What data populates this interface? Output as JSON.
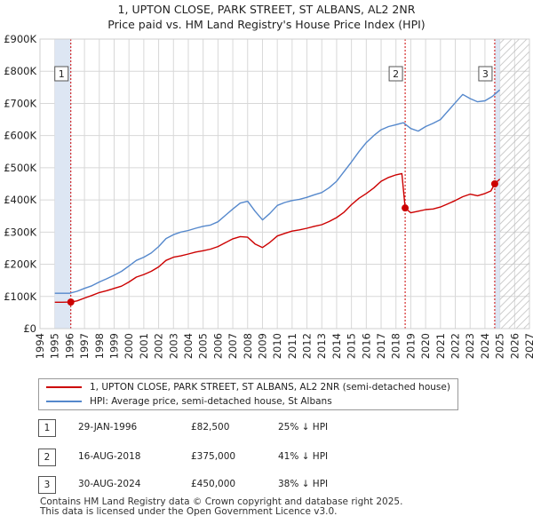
{
  "header": {
    "title": "1, UPTON CLOSE, PARK STREET, ST ALBANS, AL2 2NR",
    "subtitle": "Price paid vs. HM Land Registry's House Price Index (HPI)"
  },
  "chart_data": {
    "type": "line",
    "title": "1, UPTON CLOSE, PARK STREET, ST ALBANS, AL2 2NR",
    "subtitle": "Price paid vs. HM Land Registry's House Price Index (HPI)",
    "xlabel": "",
    "ylabel": "",
    "xlim": [
      1994,
      2027
    ],
    "ylim": [
      0,
      900000
    ],
    "x_ticks": [
      "1994",
      "1995",
      "1996",
      "1997",
      "1998",
      "1999",
      "2000",
      "2001",
      "2002",
      "2003",
      "2004",
      "2005",
      "2006",
      "2007",
      "2008",
      "2009",
      "2010",
      "2011",
      "2012",
      "2013",
      "2014",
      "2015",
      "2016",
      "2017",
      "2018",
      "2019",
      "2020",
      "2021",
      "2022",
      "2023",
      "2024",
      "2025",
      "2026",
      "2027"
    ],
    "y_ticks": [
      {
        "value": 0,
        "label": "£0"
      },
      {
        "value": 100000,
        "label": "£100K"
      },
      {
        "value": 200000,
        "label": "£200K"
      },
      {
        "value": 300000,
        "label": "£300K"
      },
      {
        "value": 400000,
        "label": "£400K"
      },
      {
        "value": 500000,
        "label": "£500K"
      },
      {
        "value": 600000,
        "label": "£600K"
      },
      {
        "value": 700000,
        "label": "£700K"
      },
      {
        "value": 800000,
        "label": "£800K"
      },
      {
        "value": 900000,
        "label": "£900K"
      }
    ],
    "colors": {
      "property": "#cc0000",
      "hpi": "#5588cc",
      "shade": "#dde6f3",
      "hatch": "#bbbbbb",
      "grid": "#d8d8d8",
      "vline": "#cc0000"
    },
    "data_start_year": 1995,
    "hatch_from_year": 2025,
    "series": [
      {
        "name": "1, UPTON CLOSE, PARK STREET, ST ALBANS, AL2 2NR (semi-detached house)",
        "color": "#cc0000",
        "x": [
          1995.0,
          1995.5,
          1996.08,
          1996.5,
          1997.0,
          1997.5,
          1998.0,
          1998.5,
          1999.0,
          1999.5,
          2000.0,
          2000.5,
          2001.0,
          2001.5,
          2002.0,
          2002.5,
          2003.0,
          2003.5,
          2004.0,
          2004.5,
          2005.0,
          2005.5,
          2006.0,
          2006.5,
          2007.0,
          2007.5,
          2008.0,
          2008.5,
          2009.0,
          2009.5,
          2010.0,
          2010.5,
          2011.0,
          2011.5,
          2012.0,
          2012.5,
          2013.0,
          2013.5,
          2014.0,
          2014.5,
          2015.0,
          2015.5,
          2016.0,
          2016.5,
          2017.0,
          2017.5,
          2018.0,
          2018.4,
          2018.62,
          2019.0,
          2019.5,
          2020.0,
          2020.5,
          2021.0,
          2021.5,
          2022.0,
          2022.5,
          2023.0,
          2023.5,
          2024.0,
          2024.4,
          2024.66,
          2025.0
        ],
        "y": [
          82000,
          82000,
          82500,
          86000,
          95000,
          103000,
          112000,
          118000,
          125000,
          132000,
          145000,
          160000,
          168000,
          178000,
          192000,
          212000,
          222000,
          226000,
          232000,
          238000,
          242000,
          247000,
          255000,
          267000,
          279000,
          286000,
          284000,
          263000,
          252000,
          268000,
          288000,
          296000,
          303000,
          307000,
          312000,
          318000,
          323000,
          333000,
          345000,
          362000,
          385000,
          405000,
          420000,
          437000,
          458000,
          470000,
          478000,
          482000,
          375000,
          360000,
          365000,
          370000,
          372000,
          378000,
          388000,
          398000,
          410000,
          418000,
          413000,
          420000,
          428000,
          450000,
          465000
        ]
      },
      {
        "name": "HPI: Average price, semi-detached house, St Albans",
        "color": "#5588cc",
        "x": [
          1995.0,
          1995.5,
          1996.0,
          1996.5,
          1997.0,
          1997.5,
          1998.0,
          1998.5,
          1999.0,
          1999.5,
          2000.0,
          2000.5,
          2001.0,
          2001.5,
          2002.0,
          2002.5,
          2003.0,
          2003.5,
          2004.0,
          2004.5,
          2005.0,
          2005.5,
          2006.0,
          2006.5,
          2007.0,
          2007.5,
          2008.0,
          2008.5,
          2009.0,
          2009.5,
          2010.0,
          2010.5,
          2011.0,
          2011.5,
          2012.0,
          2012.5,
          2013.0,
          2013.5,
          2014.0,
          2014.5,
          2015.0,
          2015.5,
          2016.0,
          2016.5,
          2017.0,
          2017.5,
          2018.0,
          2018.5,
          2019.0,
          2019.5,
          2020.0,
          2020.5,
          2021.0,
          2021.5,
          2022.0,
          2022.5,
          2023.0,
          2023.5,
          2024.0,
          2024.5,
          2025.0
        ],
        "y": [
          110000,
          110000,
          110000,
          116000,
          125000,
          133000,
          145000,
          155000,
          166000,
          178000,
          195000,
          212000,
          222000,
          235000,
          255000,
          280000,
          292000,
          300000,
          305000,
          312000,
          318000,
          322000,
          332000,
          352000,
          372000,
          390000,
          396000,
          365000,
          338000,
          358000,
          383000,
          392000,
          398000,
          402000,
          408000,
          416000,
          423000,
          438000,
          458000,
          488000,
          518000,
          550000,
          578000,
          600000,
          618000,
          628000,
          634000,
          640000,
          622000,
          614000,
          628000,
          638000,
          650000,
          676000,
          702000,
          728000,
          715000,
          705000,
          708000,
          722000,
          742000
        ]
      }
    ],
    "sales": [
      {
        "id": "1",
        "x": 1996.08,
        "price": 82500
      },
      {
        "id": "2",
        "x": 2018.62,
        "price": 375000
      },
      {
        "id": "3",
        "x": 2024.66,
        "price": 450000
      }
    ],
    "legend_position": "below"
  },
  "legend": {
    "items": [
      {
        "label": "1, UPTON CLOSE, PARK STREET, ST ALBANS, AL2 2NR (semi-detached house)",
        "color": "#cc0000"
      },
      {
        "label": "HPI: Average price, semi-detached house, St Albans",
        "color": "#5588cc"
      }
    ]
  },
  "sales_table": [
    {
      "num": "1",
      "date": "29-JAN-1996",
      "price": "£82,500",
      "hpi": "25% ↓ HPI"
    },
    {
      "num": "2",
      "date": "16-AUG-2018",
      "price": "£375,000",
      "hpi": "41% ↓ HPI"
    },
    {
      "num": "3",
      "date": "30-AUG-2024",
      "price": "£450,000",
      "hpi": "38% ↓ HPI"
    }
  ],
  "footer": {
    "line1": "Contains HM Land Registry data © Crown copyright and database right 2025.",
    "line2": "This data is licensed under the Open Government Licence v3.0."
  }
}
